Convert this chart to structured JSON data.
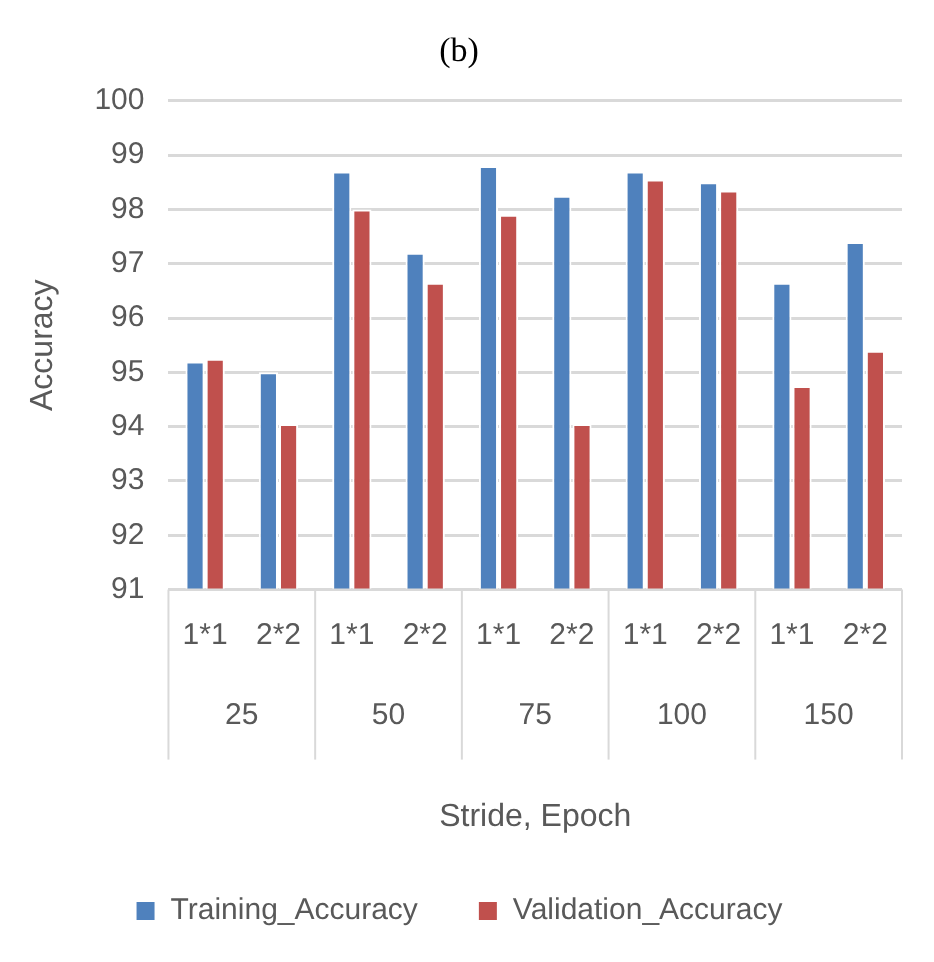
{
  "chart_data": {
    "type": "bar",
    "title": "(b)",
    "xlabel": "Stride, Epoch",
    "ylabel": "Accuracy",
    "categories": [
      "1*1",
      "2*2",
      "1*1",
      "2*2",
      "1*1",
      "2*2",
      "1*1",
      "2*2",
      "1*1",
      "2*2"
    ],
    "annotations": [
      "25",
      "50",
      "75",
      "100",
      "150"
    ],
    "series": [
      {
        "name": "Training_Accuracy",
        "color": "#4f81bd",
        "values": [
          95.2,
          95.0,
          98.7,
          97.2,
          98.8,
          98.25,
          98.7,
          98.5,
          96.65,
          97.4
        ]
      },
      {
        "name": "Validation_Accuracy",
        "color": "#c0504d",
        "values": [
          95.25,
          94.05,
          98.0,
          96.65,
          97.9,
          94.05,
          98.55,
          98.35,
          94.75,
          95.4
        ]
      }
    ],
    "ylim": [
      91,
      100
    ],
    "yticks": [
      91,
      92,
      93,
      94,
      95,
      96,
      97,
      98,
      99,
      100
    ],
    "grid": "y",
    "legend": "bottom"
  }
}
